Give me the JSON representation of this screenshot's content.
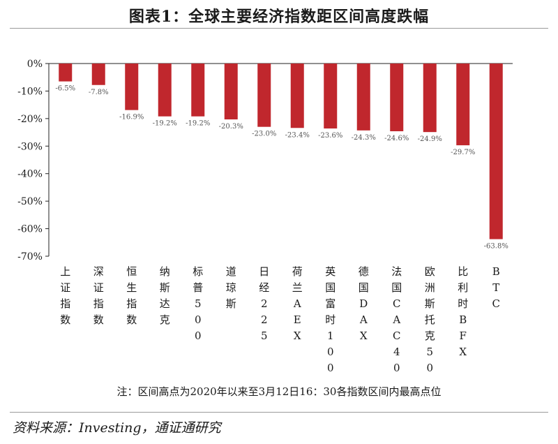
{
  "title": "图表1：全球主要经济指数距区间高度跌幅",
  "note": "注：区间高点为2020年以来至3月12日16：30各指数区间内最高点位",
  "source": "资料来源：Investing，通证通研究",
  "chart_data": {
    "type": "bar",
    "title": "图表1：全球主要经济指数距区间高度跌幅",
    "xlabel": "",
    "ylabel": "",
    "ylim": [
      -70,
      0
    ],
    "yticks": [
      0,
      -10,
      -20,
      -30,
      -40,
      -50,
      -60,
      -70
    ],
    "ytick_labels": [
      "0%",
      "-10%",
      "-20%",
      "-30%",
      "-40%",
      "-50%",
      "-60%",
      "-70%"
    ],
    "categories": [
      "上证指数",
      "深证指数",
      "恒生指数",
      "纳斯达克",
      "标普500",
      "道琼斯",
      "日经225",
      "荷兰AEX",
      "英国富时100",
      "德国DAX",
      "法国CAC40",
      "欧洲斯托克50",
      "比利时BFX",
      "BTC"
    ],
    "values": [
      -6.5,
      -7.8,
      -16.9,
      -19.2,
      -19.2,
      -20.3,
      -23.0,
      -23.4,
      -23.6,
      -24.3,
      -24.6,
      -24.9,
      -29.7,
      -63.8
    ],
    "data_labels": [
      "-6.5%",
      "-7.8%",
      "-16.9%",
      "-19.2%",
      "-19.2%",
      "-20.3%",
      "-23.0%",
      "-23.4%",
      "-23.6%",
      "-24.3%",
      "-24.6%",
      "-24.9%",
      "-29.7%",
      "-63.8%"
    ],
    "bar_color": "#c0272d",
    "grid": false,
    "legend": "none"
  }
}
